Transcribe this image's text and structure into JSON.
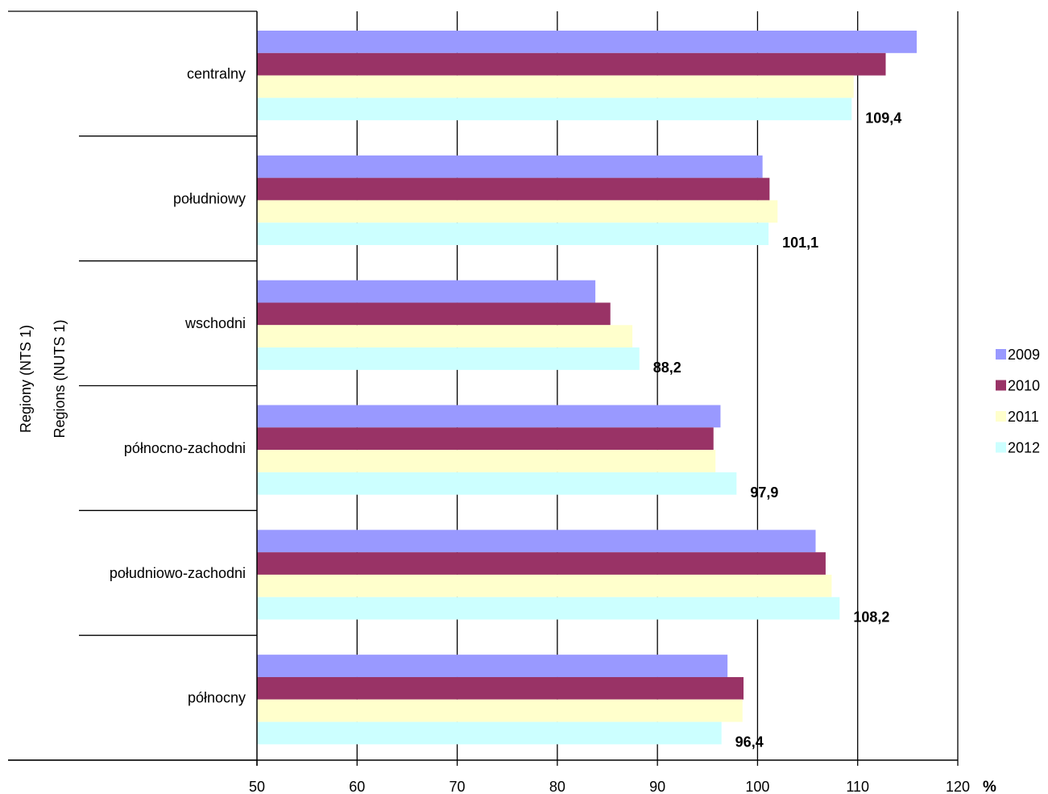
{
  "chart_data": {
    "type": "bar",
    "orientation": "horizontal",
    "categories": [
      "centralny",
      "południowy",
      "wschodni",
      "północno-zachodni",
      "południowo-zachodni",
      "północny"
    ],
    "series": [
      {
        "name": "2009",
        "color": "#9999ff",
        "values": [
          115.9,
          100.5,
          83.8,
          96.3,
          105.8,
          97.0
        ]
      },
      {
        "name": "2010",
        "color": "#993366",
        "values": [
          112.8,
          101.2,
          85.3,
          95.6,
          106.8,
          98.6
        ]
      },
      {
        "name": "2011",
        "color": "#ffffcc",
        "values": [
          109.6,
          102.0,
          87.5,
          95.8,
          107.4,
          98.5
        ]
      },
      {
        "name": "2012",
        "color": "#ccffff",
        "values": [
          109.4,
          101.1,
          88.2,
          97.9,
          108.2,
          96.4
        ]
      }
    ],
    "data_labels": [
      "109,4",
      "101,1",
      "88,2",
      "97,9",
      "108,2",
      "96,4"
    ],
    "xlim": [
      50,
      120
    ],
    "xticks": [
      "50",
      "60",
      "70",
      "80",
      "90",
      "100",
      "110",
      "120"
    ],
    "x_unit": "%",
    "ylabel_lines": [
      "Regiony (NTS 1)",
      "Regions (NUTS 1)"
    ],
    "grid": true,
    "legend_position": "right"
  }
}
